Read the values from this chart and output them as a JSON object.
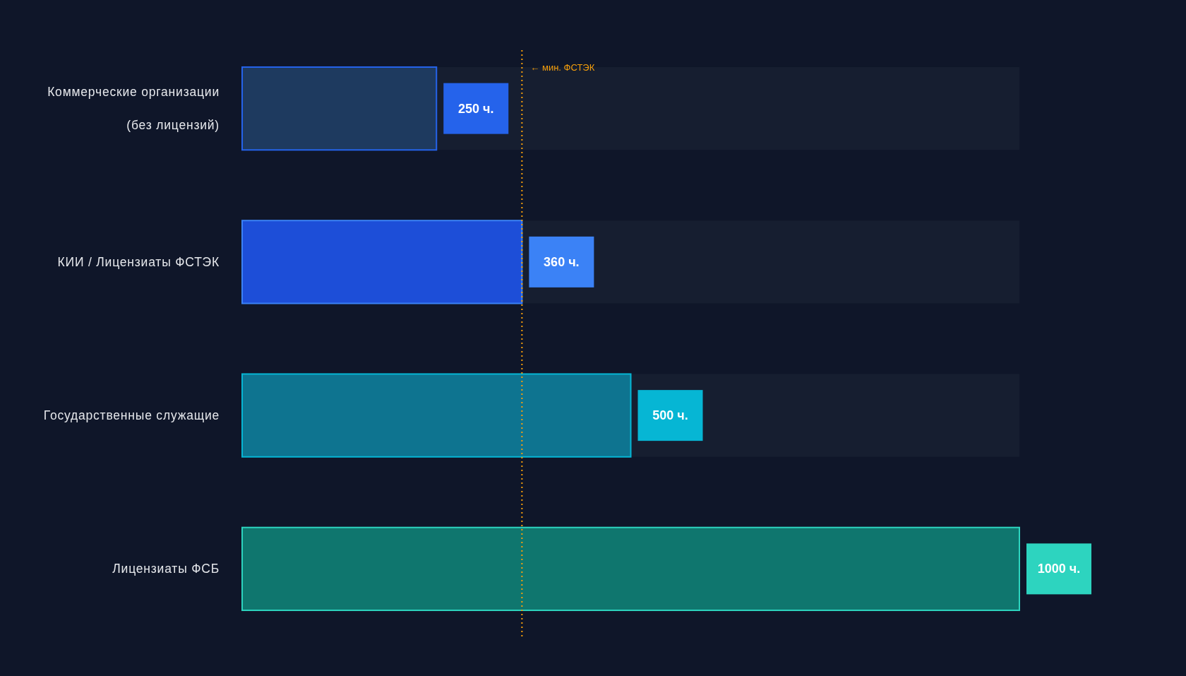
{
  "chart_data": {
    "type": "bar",
    "orientation": "horizontal",
    "categories": [
      "Коммерческие организации (без лицензий)",
      "КИИ / Лицензиаты ФСТЭК",
      "Государственные служащие",
      "Лицензиаты ФСБ"
    ],
    "colors": [
      "#1e3a5f",
      "#1d4ed8",
      "#0e7490",
      "#0f766e"
    ],
    "values": [
      250,
      360,
      500,
      1000
    ],
    "value_labels": [
      "250 ч.",
      "360 ч.",
      "500 ч.",
      "1000 ч."
    ],
    "tick_labels": "y",
    "ref_lines": [
      {
        "axis": "x",
        "value": 360,
        "label": "← мин. ФСТЭК",
        "color": "#f59e0b",
        "line_style": "dotted"
      }
    ]
  }
}
